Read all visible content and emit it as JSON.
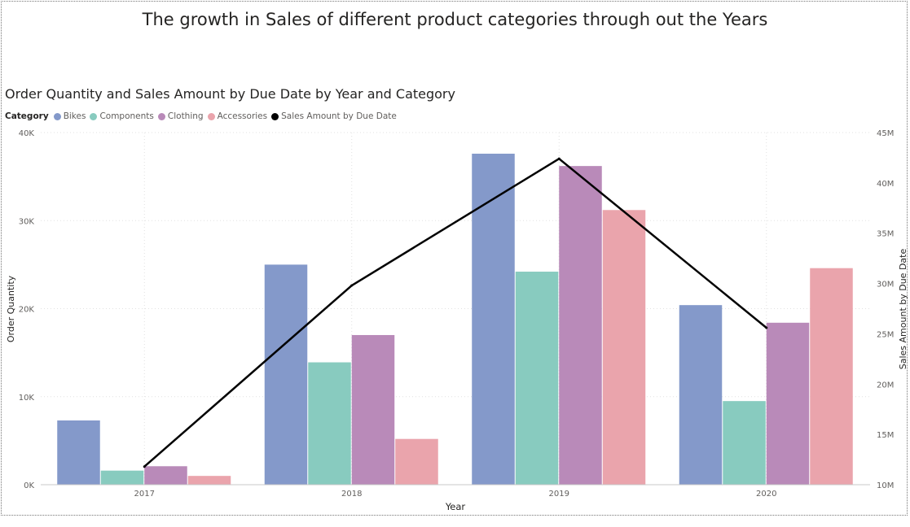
{
  "page_title": "The growth in Sales of different product  categories through out the Years",
  "chart_data": {
    "type": "bar",
    "title": "Order Quantity and Sales Amount by Due Date by Year and Category",
    "legend_title": "Category",
    "legend_position": "top-left",
    "xlabel": "Year",
    "ylabel": "Order Quantity",
    "y2label": "Sales Amount by Due Date",
    "categories": [
      "2017",
      "2018",
      "2019",
      "2020"
    ],
    "ylim": [
      0,
      40000
    ],
    "y_ticks": [
      0,
      10000,
      20000,
      30000,
      40000
    ],
    "y_tick_labels": [
      "0K",
      "10K",
      "20K",
      "30K",
      "40K"
    ],
    "y2lim": [
      10000000,
      45000000
    ],
    "y2_ticks": [
      10000000,
      15000000,
      20000000,
      25000000,
      30000000,
      35000000,
      40000000,
      45000000
    ],
    "y2_tick_labels": [
      "10M",
      "15M",
      "20M",
      "25M",
      "30M",
      "35M",
      "40M",
      "45M"
    ],
    "grid": true,
    "series": [
      {
        "name": "Bikes",
        "color": "#8499CA",
        "values": [
          7300,
          25000,
          37600,
          20400
        ]
      },
      {
        "name": "Components",
        "color": "#88CBBF",
        "values": [
          1600,
          13900,
          24200,
          9500
        ]
      },
      {
        "name": "Clothing",
        "color": "#B98AB9",
        "values": [
          2100,
          17000,
          36200,
          18400
        ]
      },
      {
        "name": "Accessories",
        "color": "#EAA4AC",
        "values": [
          1000,
          5200,
          31200,
          24600
        ]
      }
    ],
    "line_series": {
      "name": "Sales Amount by Due Date",
      "color": "#000000",
      "axis": "y2",
      "values": [
        11800000,
        29800000,
        42400000,
        25600000
      ]
    }
  }
}
